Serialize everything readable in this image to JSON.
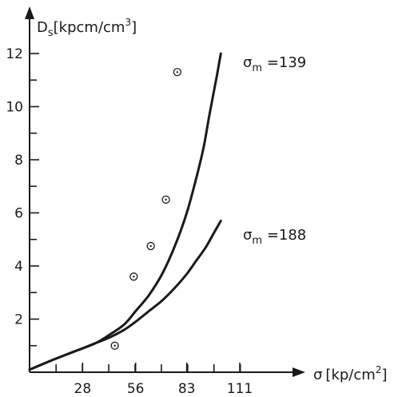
{
  "chart_data": {
    "type": "line",
    "ylabel": {
      "main": "D",
      "sub": "s",
      "unit_before": "[kpcm/cm",
      "unit_sup": "3",
      "unit_after": "]"
    },
    "xlabel": {
      "main": "σ",
      "unit_before": "[kp/cm",
      "unit_sup": "2",
      "unit_after": "]"
    },
    "x_ticks": [
      28,
      56,
      83,
      111
    ],
    "y_ticks": [
      2,
      4,
      6,
      8,
      10,
      12
    ],
    "xlim": [
      0,
      139
    ],
    "ylim": [
      0,
      13.5
    ],
    "series": [
      {
        "name": "σm =139",
        "label": {
          "main": "σ",
          "sub": "m",
          "rest": " =139"
        },
        "x": [
          0,
          10,
          17,
          28,
          35,
          42,
          50,
          56,
          63,
          70,
          77,
          83,
          88,
          92,
          95,
          99,
          101
        ],
        "y": [
          0.1,
          0.4,
          0.6,
          0.9,
          1.1,
          1.4,
          1.8,
          2.3,
          2.9,
          3.7,
          4.8,
          6.0,
          7.3,
          8.5,
          9.7,
          11.2,
          12.0
        ]
      },
      {
        "name": "σm =188",
        "label": {
          "main": "σ",
          "sub": "m",
          "rest": " =188"
        },
        "x": [
          0,
          10,
          17,
          28,
          35,
          42,
          50,
          56,
          63,
          70,
          77,
          83,
          88,
          93,
          97,
          101
        ],
        "y": [
          0.1,
          0.4,
          0.6,
          0.9,
          1.1,
          1.3,
          1.6,
          1.9,
          2.3,
          2.7,
          3.2,
          3.7,
          4.2,
          4.7,
          5.2,
          5.7
        ]
      }
    ],
    "points": [
      {
        "x": 45,
        "y": 1.0
      },
      {
        "x": 55,
        "y": 3.6
      },
      {
        "x": 64,
        "y": 4.75
      },
      {
        "x": 72,
        "y": 6.5
      },
      {
        "x": 78,
        "y": 11.3
      }
    ]
  }
}
